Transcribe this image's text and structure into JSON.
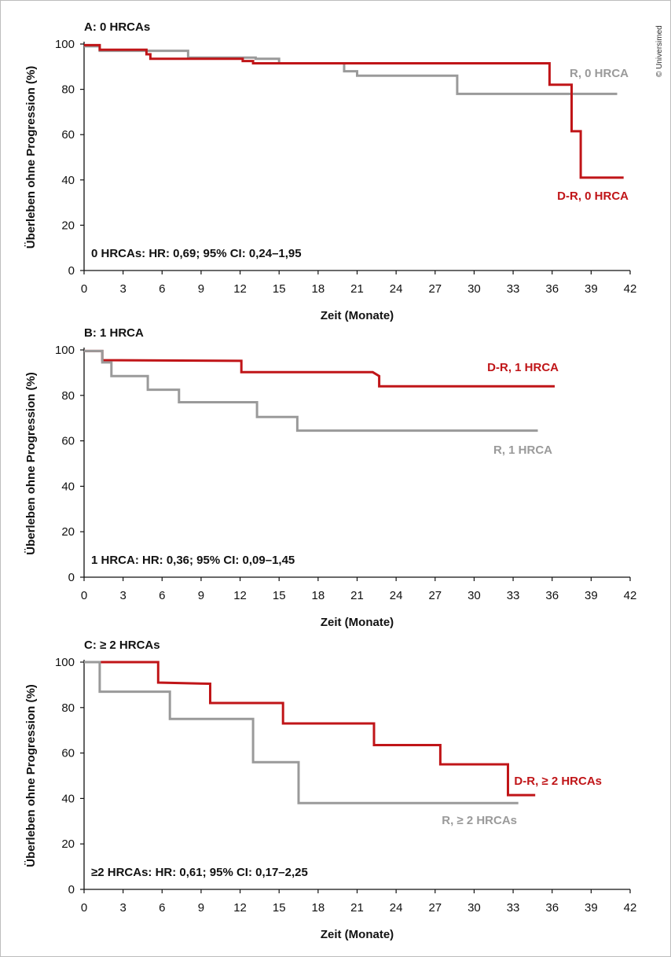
{
  "copyright": "© Universimed",
  "colors": {
    "red": "#c01518",
    "gray": "#9a9a9a"
  },
  "chart_data": [
    {
      "type": "line",
      "step": true,
      "title": "A: 0 HRCAs",
      "xlabel": "Zeit (Monate)",
      "ylabel": "Überleben ohne Progression (%)",
      "xlim": [
        0,
        42
      ],
      "ylim": [
        0,
        100
      ],
      "xticks": [
        "0",
        "3",
        "6",
        "9",
        "12",
        "15",
        "18",
        "21",
        "24",
        "27",
        "30",
        "33",
        "36",
        "39",
        "42"
      ],
      "yticks": [
        "0",
        "20",
        "40",
        "60",
        "80",
        "100"
      ],
      "stat_text": "0 HRCAs: HR: 0,69; 95% CI: 0,24–1,95",
      "grid": false,
      "series": [
        {
          "name": "R, 0 HRCA",
          "color": "#9a9a9a",
          "x": [
            0,
            1.2,
            1.2,
            8,
            8,
            13.2,
            13.2,
            15,
            15,
            20,
            20,
            21,
            21,
            28.7,
            28.7,
            41
          ],
          "y": [
            99,
            99,
            97,
            97,
            94,
            94,
            93.5,
            93.5,
            91.5,
            91.5,
            88,
            88,
            86,
            86,
            78,
            78
          ]
        },
        {
          "name": "D-R, 0 HRCA",
          "color": "#c01518",
          "x": [
            0,
            1.2,
            1.2,
            4.8,
            4.8,
            5.1,
            5.1,
            12.2,
            12.2,
            13,
            13,
            35.8,
            35.8,
            37.5,
            37.5,
            38.2,
            38.2,
            41.5
          ],
          "y": [
            99.5,
            99.5,
            97.5,
            97.5,
            95.5,
            95.5,
            93.5,
            93.5,
            92.5,
            92.5,
            91.5,
            91.5,
            82,
            82,
            61.5,
            61.5,
            41,
            41
          ]
        }
      ]
    },
    {
      "type": "line",
      "step": true,
      "title": "B: 1 HRCA",
      "xlabel": "Zeit (Monate)",
      "ylabel": "Überleben ohne Progression (%)",
      "xlim": [
        0,
        42
      ],
      "ylim": [
        0,
        100
      ],
      "xticks": [
        "0",
        "3",
        "6",
        "9",
        "12",
        "15",
        "18",
        "21",
        "24",
        "27",
        "30",
        "33",
        "36",
        "39",
        "42"
      ],
      "yticks": [
        "0",
        "20",
        "40",
        "60",
        "80",
        "100"
      ],
      "stat_text": "1 HRCA: HR: 0,36; 95% CI: 0,09–1,45",
      "grid": false,
      "series": [
        {
          "name": "D-R, 1 HRCA",
          "color": "#c01518",
          "x": [
            0,
            1.4,
            1.4,
            12.1,
            12.1,
            22.2,
            22.7,
            22.7,
            36.2
          ],
          "y": [
            99.5,
            99.5,
            95.5,
            95.2,
            90.2,
            90.2,
            88.5,
            84,
            84
          ]
        },
        {
          "name": "R, 1 HRCA",
          "color": "#9a9a9a",
          "x": [
            0,
            1.4,
            1.4,
            2.1,
            2.1,
            4.9,
            4.9,
            7.3,
            7.3,
            13.3,
            13.3,
            16.4,
            16.4,
            34.9
          ],
          "y": [
            99.5,
            99.5,
            94.5,
            94.5,
            88.5,
            88.5,
            82.5,
            82.5,
            77,
            77,
            70.5,
            70.5,
            64.5,
            64.5
          ]
        }
      ]
    },
    {
      "type": "line",
      "step": true,
      "title": "C: ≥ 2 HRCAs",
      "xlabel": "Zeit (Monate)",
      "ylabel": "Überleben ohne Progression (%)",
      "xlim": [
        0,
        42
      ],
      "ylim": [
        0,
        100
      ],
      "xticks": [
        "0",
        "3",
        "6",
        "9",
        "12",
        "15",
        "18",
        "21",
        "24",
        "27",
        "30",
        "33",
        "36",
        "39",
        "42"
      ],
      "yticks": [
        "0",
        "20",
        "40",
        "60",
        "80",
        "100"
      ],
      "stat_text": "≥2 HRCAs: HR: 0,61; 95% CI: 0,17–2,25",
      "grid": false,
      "series": [
        {
          "name": "D-R, ≥ 2 HRCAs",
          "color": "#c01518",
          "x": [
            0,
            5.7,
            5.7,
            9.7,
            9.7,
            15.3,
            15.3,
            22.3,
            22.3,
            27.4,
            27.4,
            32.6,
            32.6,
            34.7
          ],
          "y": [
            100,
            100,
            91,
            90.5,
            82,
            82,
            73,
            73,
            63.5,
            63.5,
            55,
            55,
            41.5,
            41.5
          ]
        },
        {
          "name": "R, ≥ 2 HRCAs",
          "color": "#9a9a9a",
          "x": [
            0,
            1.2,
            1.2,
            6.6,
            6.6,
            13,
            13,
            16.5,
            16.5,
            33.4
          ],
          "y": [
            100,
            100,
            87,
            87,
            75,
            75,
            56,
            56,
            38,
            38
          ]
        }
      ]
    }
  ]
}
